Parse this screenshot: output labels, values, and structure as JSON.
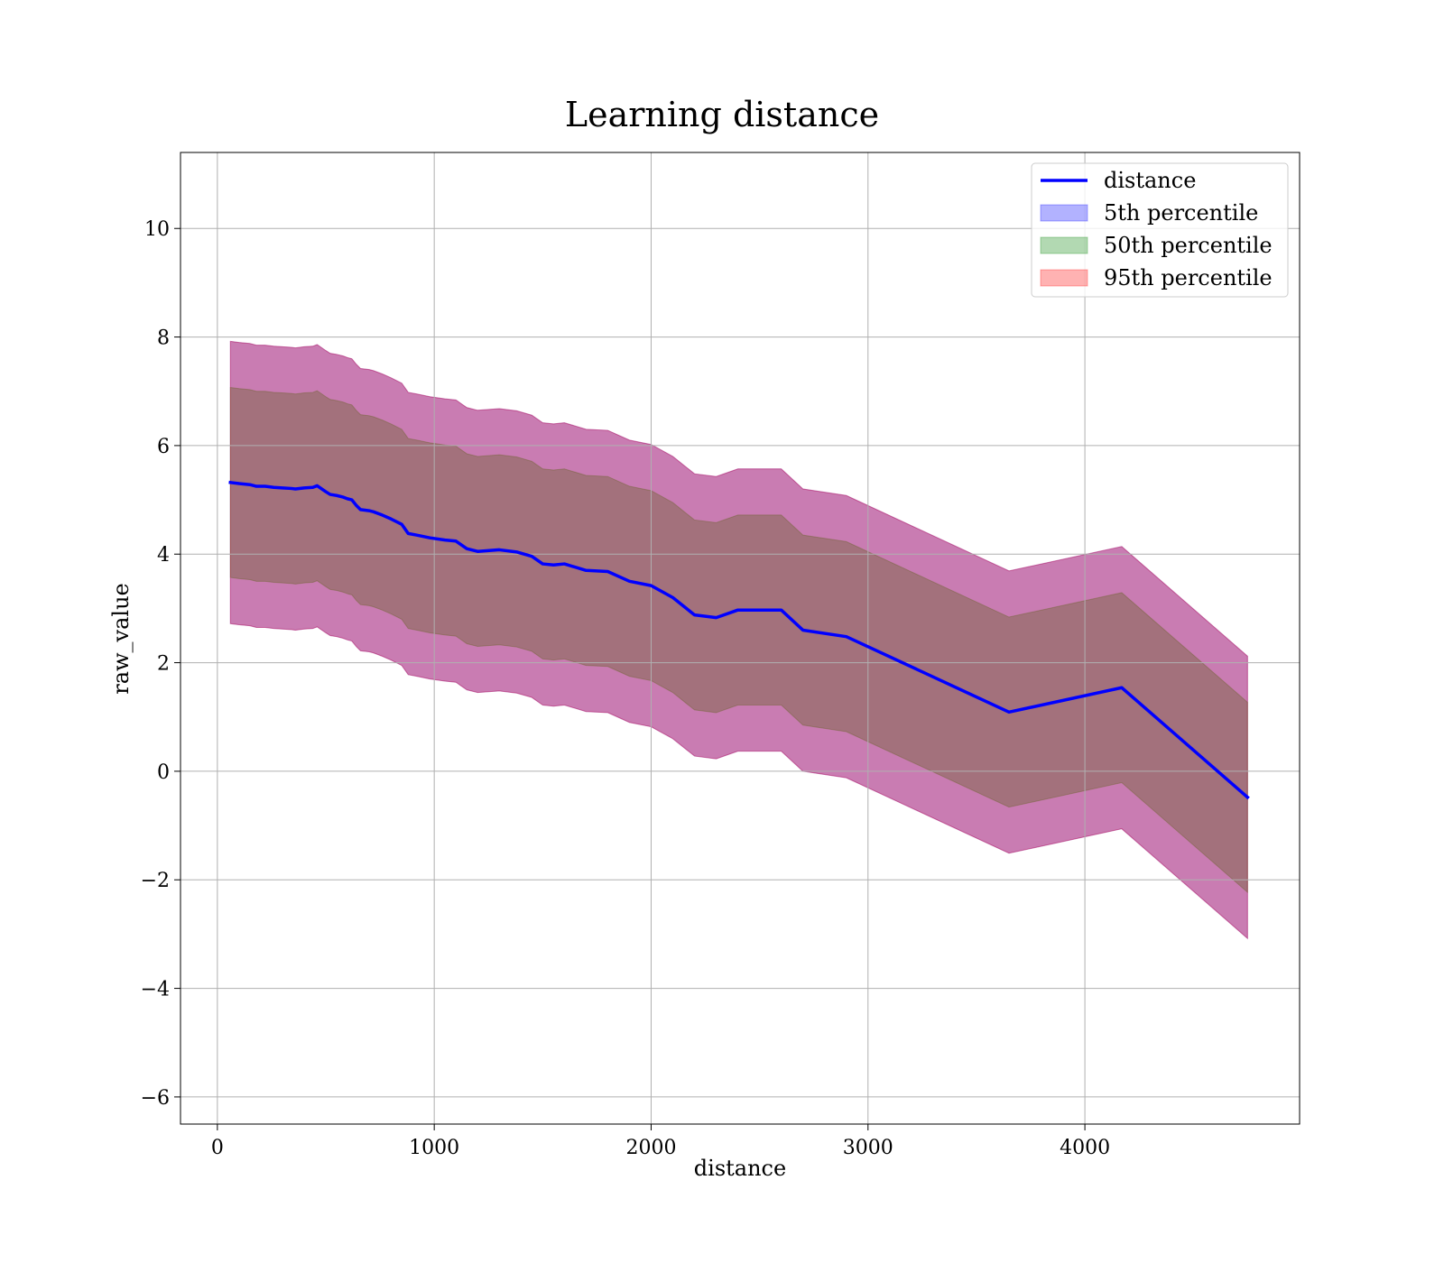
{
  "chart_data": {
    "type": "area",
    "title": "Learning distance",
    "xlabel": "distance",
    "ylabel": "raw_value",
    "xlim": [
      -170,
      4990
    ],
    "ylim": [
      -6.5,
      11.4
    ],
    "xticks": [
      0,
      1000,
      2000,
      3000,
      4000
    ],
    "xtick_labels": [
      "0",
      "1000",
      "2000",
      "3000",
      "4000"
    ],
    "yticks": [
      -6,
      -4,
      -2,
      0,
      2,
      4,
      6,
      8,
      10
    ],
    "ytick_labels": [
      "−6",
      "−4",
      "−2",
      "0",
      "2",
      "4",
      "6",
      "8",
      "10"
    ],
    "grid": true,
    "legend_position": "top-right",
    "x": [
      60,
      100,
      150,
      180,
      220,
      260,
      300,
      340,
      360,
      400,
      440,
      460,
      500,
      520,
      550,
      580,
      600,
      620,
      640,
      660,
      700,
      720,
      760,
      800,
      850,
      880,
      920,
      980,
      1050,
      1100,
      1150,
      1200,
      1300,
      1380,
      1450,
      1500,
      1550,
      1600,
      1700,
      1800,
      1900,
      2000,
      2100,
      2200,
      2300,
      2400,
      2500,
      2600,
      2700,
      2900,
      3650,
      4170,
      4750
    ],
    "series": [
      {
        "name": "distance",
        "style": "line",
        "color": "#0000ff",
        "values": [
          5.32,
          5.3,
          5.28,
          5.25,
          5.25,
          5.23,
          5.22,
          5.21,
          5.2,
          5.22,
          5.23,
          5.26,
          5.15,
          5.1,
          5.08,
          5.05,
          5.02,
          5.0,
          4.9,
          4.82,
          4.8,
          4.78,
          4.72,
          4.65,
          4.55,
          4.38,
          4.35,
          4.3,
          4.26,
          4.24,
          4.1,
          4.05,
          4.08,
          4.04,
          3.96,
          3.82,
          3.8,
          3.82,
          3.7,
          3.68,
          3.5,
          3.42,
          3.2,
          2.88,
          2.83,
          2.97,
          2.97,
          2.97,
          2.6,
          2.48,
          1.09,
          1.54,
          -0.48
        ]
      },
      {
        "name": "5th percentile",
        "style": "band",
        "color": "#0000ff",
        "opacity": 0.3,
        "width": 5.2
      },
      {
        "name": "50th percentile",
        "style": "band",
        "color": "#008000",
        "opacity": 0.3,
        "width": 3.5
      },
      {
        "name": "95th percentile",
        "style": "band",
        "color": "#ff0000",
        "opacity": 0.3,
        "width": 5.2
      }
    ]
  }
}
